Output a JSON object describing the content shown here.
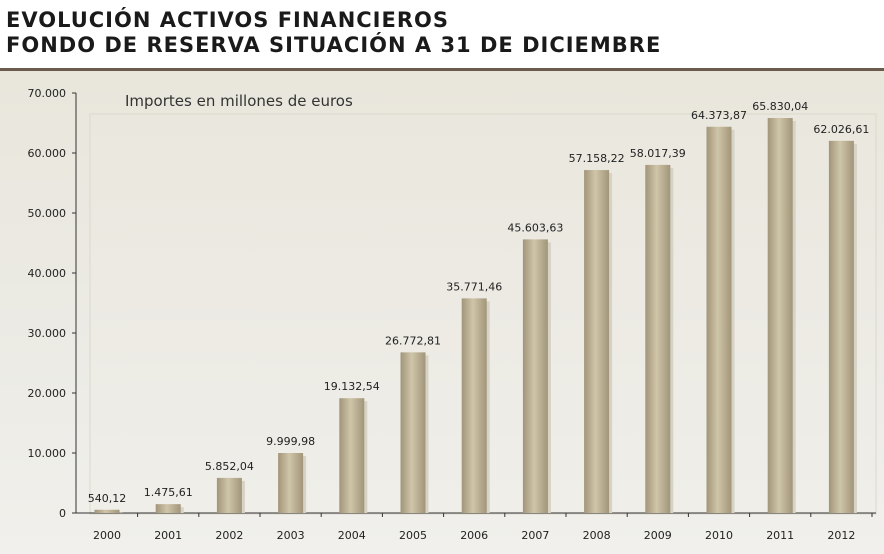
{
  "title": {
    "line1": "EVOLUCIÓN ACTIVOS FINANCIEROS",
    "line2": "FONDO DE RESERVA SITUACIÓN A 31 DE DICIEMBRE"
  },
  "colors": {
    "bar": "#b9ad8d",
    "bar_light": "#cfc5a8",
    "bar_dark": "#a2957a",
    "rule": "#6b5a4e"
  },
  "chart_data": {
    "type": "bar",
    "title": "EVOLUCIÓN ACTIVOS FINANCIEROS FONDO DE RESERVA SITUACIÓN A 31 DE DICIEMBRE",
    "subtitle": "Importes en millones de euros",
    "xlabel": "",
    "ylabel": "",
    "ylim": [
      0,
      70000
    ],
    "yticks": [
      0,
      10000,
      20000,
      30000,
      40000,
      50000,
      60000,
      70000
    ],
    "ytick_labels": [
      "0",
      "10.000",
      "20.000",
      "30.000",
      "40.000",
      "50.000",
      "60.000",
      "70.000"
    ],
    "grid": false,
    "categories": [
      "2000",
      "2001",
      "2002",
      "2003",
      "2004",
      "2005",
      "2006",
      "2007",
      "2008",
      "2009",
      "2010",
      "2011",
      "2012"
    ],
    "values": [
      540.12,
      1475.61,
      5852.04,
      9999.98,
      19132.54,
      26772.81,
      35771.46,
      45603.63,
      57158.22,
      58017.39,
      64373.87,
      65830.04,
      62026.61
    ],
    "data_labels": [
      "540,12",
      "1.475,61",
      "5.852,04",
      "9.999,98",
      "19.132,54",
      "26.772,81",
      "35.771,46",
      "45.603,63",
      "57.158,22",
      "58.017,39",
      "64.373,87",
      "65.830,04",
      "62.026,61"
    ]
  }
}
